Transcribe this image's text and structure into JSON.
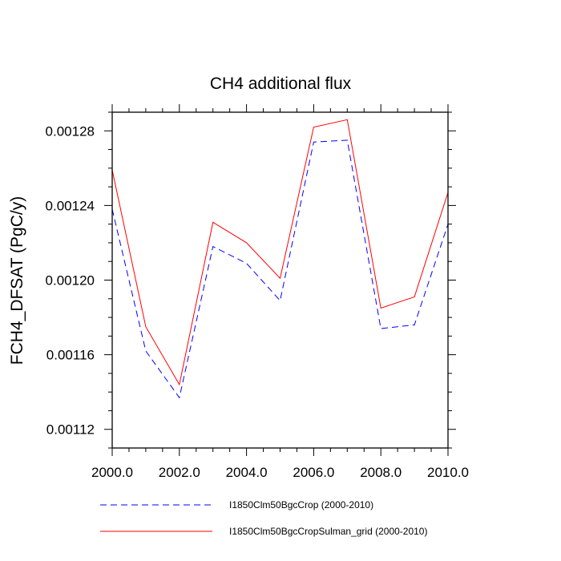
{
  "chart_data": {
    "type": "line",
    "title": "CH4 additional flux",
    "xlabel": "",
    "ylabel": "FCH4_DFSAT  (PgC/y)",
    "xlim": [
      2000,
      2010
    ],
    "ylim": [
      0.00111,
      0.00129
    ],
    "x": [
      2000,
      2001,
      2002,
      2003,
      2004,
      2005,
      2006,
      2007,
      2008,
      2009,
      2010
    ],
    "x_tick_labels": [
      "2000.0",
      "2002.0",
      "2004.0",
      "2006.0",
      "2008.0",
      "2010.0"
    ],
    "y_tick_labels": [
      "0.00112",
      "0.00116",
      "0.00120",
      "0.00124",
      "0.00128"
    ],
    "grid": false,
    "legend_position": "bottom",
    "series": [
      {
        "name": "I1850Clm50BgcCrop (2000-2010)",
        "color": "#0000ff",
        "dash": "dashed",
        "values": [
          0.001238,
          0.001162,
          0.001137,
          0.001218,
          0.001209,
          0.001189,
          0.001274,
          0.001275,
          0.001174,
          0.001176,
          0.00123
        ]
      },
      {
        "name": "I1850Clm50BgcCropSulman_grid (2000-2010)",
        "color": "#ff0000",
        "dash": "solid",
        "values": [
          0.001259,
          0.001175,
          0.001144,
          0.001231,
          0.00122,
          0.001201,
          0.001282,
          0.001286,
          0.001185,
          0.001191,
          0.001247
        ]
      }
    ]
  }
}
